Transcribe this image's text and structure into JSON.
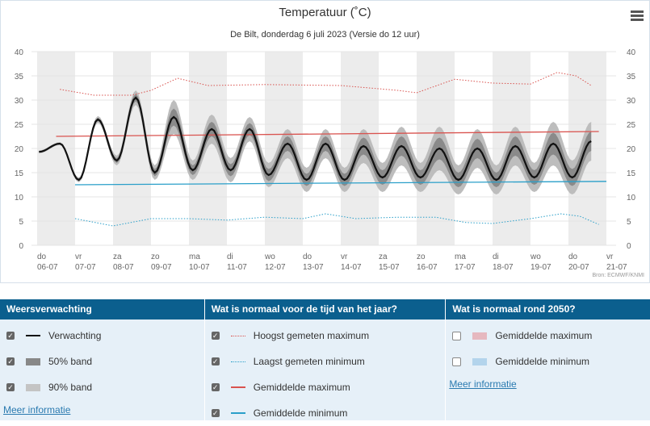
{
  "title": "Temperatuur (˚C)",
  "subtitle": "De Bilt, donderdag 6 juli 2023 (Versie do 12 uur)",
  "source": "Bron: ECMWF/KNMI",
  "colors": {
    "forecast": "#111111",
    "band50": "#777777",
    "band90": "#bbbbbb",
    "max_record": "#d9534f",
    "min_record": "#2a9fc9",
    "avg_max": "#d9534f",
    "avg_min": "#2a9fc9"
  },
  "chart_data": {
    "type": "line",
    "title": "Temperatuur (˚C)",
    "ylim": [
      0,
      40
    ],
    "yticks": [
      0,
      5,
      10,
      15,
      20,
      25,
      30,
      35,
      40
    ],
    "xticks": [
      {
        "day": "do",
        "date": "06-07"
      },
      {
        "day": "vr",
        "date": "07-07"
      },
      {
        "day": "za",
        "date": "08-07"
      },
      {
        "day": "zo",
        "date": "09-07"
      },
      {
        "day": "ma",
        "date": "10-07"
      },
      {
        "day": "di",
        "date": "11-07"
      },
      {
        "day": "wo",
        "date": "12-07"
      },
      {
        "day": "do",
        "date": "13-07"
      },
      {
        "day": "vr",
        "date": "14-07"
      },
      {
        "day": "za",
        "date": "15-07"
      },
      {
        "day": "zo",
        "date": "16-07"
      },
      {
        "day": "ma",
        "date": "17-07"
      },
      {
        "day": "di",
        "date": "18-07"
      },
      {
        "day": "wo",
        "date": "19-07"
      },
      {
        "day": "do",
        "date": "20-07"
      },
      {
        "day": "vr",
        "date": "21-07"
      }
    ],
    "forecast_extremes": [
      [
        0.05,
        19.3
      ],
      [
        0.6,
        21
      ],
      [
        1.1,
        13.5
      ],
      [
        1.6,
        26
      ],
      [
        2.1,
        17.5
      ],
      [
        2.6,
        30.5
      ],
      [
        3.1,
        15
      ],
      [
        3.6,
        26.5
      ],
      [
        4.1,
        15.5
      ],
      [
        4.6,
        24
      ],
      [
        5.1,
        15.5
      ],
      [
        5.6,
        24
      ],
      [
        6.1,
        14.5
      ],
      [
        6.6,
        21
      ],
      [
        7.1,
        13.5
      ],
      [
        7.6,
        21
      ],
      [
        8.1,
        13.5
      ],
      [
        8.6,
        20.5
      ],
      [
        9.1,
        14
      ],
      [
        9.6,
        20.5
      ],
      [
        10.1,
        14
      ],
      [
        10.6,
        20
      ],
      [
        11.1,
        13.5
      ],
      [
        11.6,
        20
      ],
      [
        12.1,
        13.5
      ],
      [
        12.6,
        20.5
      ],
      [
        13.1,
        14
      ],
      [
        13.6,
        21
      ],
      [
        14.1,
        14
      ],
      [
        14.6,
        21.5
      ]
    ],
    "spread90": [
      0.3,
      0.3,
      0.5,
      0.7,
      1,
      1.5,
      1.5,
      3.5,
      2,
      3,
      2.5,
      2.5,
      2.5,
      3,
      2.5,
      3,
      2.5,
      3.5,
      3,
      4,
      3,
      4.5,
      3,
      4,
      3,
      4,
      3,
      4.5,
      3.5,
      4
    ],
    "max_record": [
      [
        0.6,
        32.2
      ],
      [
        1.5,
        31
      ],
      [
        2.5,
        31
      ],
      [
        3,
        32
      ],
      [
        3.7,
        34.5
      ],
      [
        4.5,
        33
      ],
      [
        6,
        33.2
      ],
      [
        8,
        33
      ],
      [
        9.5,
        32
      ],
      [
        10,
        31.5
      ],
      [
        11,
        34.3
      ],
      [
        12,
        33.5
      ],
      [
        13,
        33.3
      ],
      [
        13.7,
        35.7
      ],
      [
        14.2,
        35
      ],
      [
        14.6,
        33
      ]
    ],
    "min_record": [
      [
        1,
        5.5
      ],
      [
        2,
        4
      ],
      [
        3,
        5.5
      ],
      [
        4,
        5.5
      ],
      [
        5,
        5.2
      ],
      [
        6,
        5.8
      ],
      [
        7,
        5.5
      ],
      [
        7.6,
        6.5
      ],
      [
        8.4,
        5.5
      ],
      [
        9.5,
        5.8
      ],
      [
        10.5,
        5.8
      ],
      [
        11.3,
        4.7
      ],
      [
        12,
        4.5
      ],
      [
        13,
        5.5
      ],
      [
        13.8,
        6.5
      ],
      [
        14.3,
        6
      ],
      [
        14.8,
        4.3
      ]
    ],
    "avg_max": [
      [
        0.5,
        22.5
      ],
      [
        14.8,
        23.5
      ]
    ],
    "avg_min": [
      [
        1,
        12.5
      ],
      [
        15,
        13.2
      ]
    ]
  },
  "legend": {
    "forecast": {
      "title": "Weersverwachting",
      "items": [
        {
          "label": "Verwachting",
          "checked": true
        },
        {
          "label": "50% band",
          "checked": true
        },
        {
          "label": "90% band",
          "checked": true
        }
      ],
      "link": "Meer informatie"
    },
    "normal": {
      "title": "Wat is normaal voor de tijd van het jaar?",
      "items": [
        {
          "label": "Hoogst gemeten maximum",
          "checked": true
        },
        {
          "label": "Laagst gemeten minimum",
          "checked": true
        },
        {
          "label": "Gemiddelde maximum",
          "checked": true
        },
        {
          "label": "Gemiddelde minimum",
          "checked": true
        }
      ]
    },
    "future": {
      "title": "Wat is normaal rond 2050?",
      "items": [
        {
          "label": "Gemiddelde maximum",
          "checked": false
        },
        {
          "label": "Gemiddelde minimum",
          "checked": false
        }
      ],
      "link": "Meer informatie"
    }
  }
}
